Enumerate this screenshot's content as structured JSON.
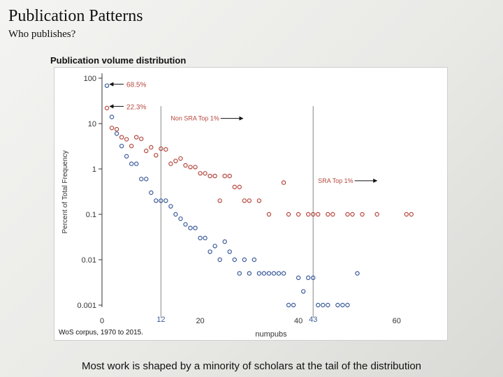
{
  "slide": {
    "title": "Publication Patterns",
    "subtitle": "Who publishes?",
    "caption": "Most work is shaped by a minority of scholars at the tail of the distribution"
  },
  "chart_data": {
    "type": "scatter",
    "title": "Publication volume distribution",
    "ylabel": "Percent of Total Frequency",
    "xlabel": "numpubs",
    "source_note": "WoS corpus, 1970 to 2015.",
    "y_scale": "log",
    "xlim": [
      0,
      70
    ],
    "ylim": [
      0.001,
      100
    ],
    "x_ticks": [
      "0",
      "20",
      "40",
      "60"
    ],
    "y_ticks": [
      "100",
      "10",
      "1",
      "0.1",
      "0.01",
      "0.001"
    ],
    "grid": false,
    "colors": {
      "series_a": "#b5473d",
      "series_b": "#3a5a9a",
      "annotation": "#b5473d",
      "reference": "#888888",
      "ref_label": "#3a5a9a"
    },
    "reference_lines": [
      {
        "x": 12,
        "label": "12"
      },
      {
        "x": 43,
        "label": "43"
      }
    ],
    "annotations": [
      {
        "text": "68.5%",
        "x": 1,
        "y": 68.5,
        "arrow": "left"
      },
      {
        "text": "22.3%",
        "x": 1,
        "y": 22.3,
        "arrow": "left"
      },
      {
        "text": "Non SRA Top 1%",
        "x": 14,
        "y": 13,
        "arrow": "right"
      },
      {
        "text": "SRA Top 1%",
        "x": 44,
        "y": 0.55,
        "arrow": "right"
      }
    ],
    "series": [
      {
        "x": [
          1,
          2,
          3,
          4,
          5,
          6,
          7,
          8,
          9,
          10,
          11,
          12,
          13,
          14,
          15,
          16,
          17,
          18,
          19,
          20,
          21,
          22,
          23,
          24,
          25,
          26,
          27,
          28,
          29,
          30,
          32,
          34,
          37,
          38,
          40,
          42,
          43,
          44,
          46,
          47,
          50,
          51,
          53,
          56,
          62,
          63
        ],
        "y": [
          22,
          8,
          7.5,
          5,
          4.5,
          3.2,
          5,
          4.6,
          2.5,
          3,
          2,
          2.8,
          2.7,
          1.3,
          1.5,
          1.7,
          1.2,
          1.1,
          1.1,
          0.8,
          0.8,
          0.7,
          0.7,
          0.2,
          0.7,
          0.7,
          0.4,
          0.4,
          0.2,
          0.2,
          0.2,
          0.1,
          0.5,
          0.1,
          0.1,
          0.1,
          0.1,
          0.1,
          0.1,
          0.1,
          0.1,
          0.1,
          0.1,
          0.1,
          0.1,
          0.1
        ]
      },
      {
        "x": [
          1,
          2,
          3,
          4,
          5,
          6,
          7,
          8,
          9,
          10,
          11,
          12,
          13,
          14,
          15,
          16,
          17,
          18,
          19,
          20,
          21,
          22,
          23,
          24,
          25,
          26,
          27,
          28,
          29,
          30,
          31,
          32,
          33,
          34,
          35,
          36,
          37,
          38,
          39,
          40,
          41,
          42,
          43,
          44,
          45,
          46,
          48,
          49,
          50,
          52
        ],
        "y": [
          68.5,
          14,
          6,
          3.2,
          1.9,
          1.3,
          1.3,
          0.6,
          0.6,
          0.3,
          0.2,
          0.2,
          0.2,
          0.15,
          0.1,
          0.08,
          0.06,
          0.05,
          0.05,
          0.03,
          0.03,
          0.015,
          0.02,
          0.01,
          0.025,
          0.015,
          0.01,
          0.005,
          0.01,
          0.005,
          0.01,
          0.005,
          0.005,
          0.005,
          0.005,
          0.005,
          0.005,
          0.001,
          0.001,
          0.004,
          0.002,
          0.004,
          0.004,
          0.001,
          0.001,
          0.001,
          0.001,
          0.001,
          0.001,
          0.005
        ]
      }
    ]
  }
}
